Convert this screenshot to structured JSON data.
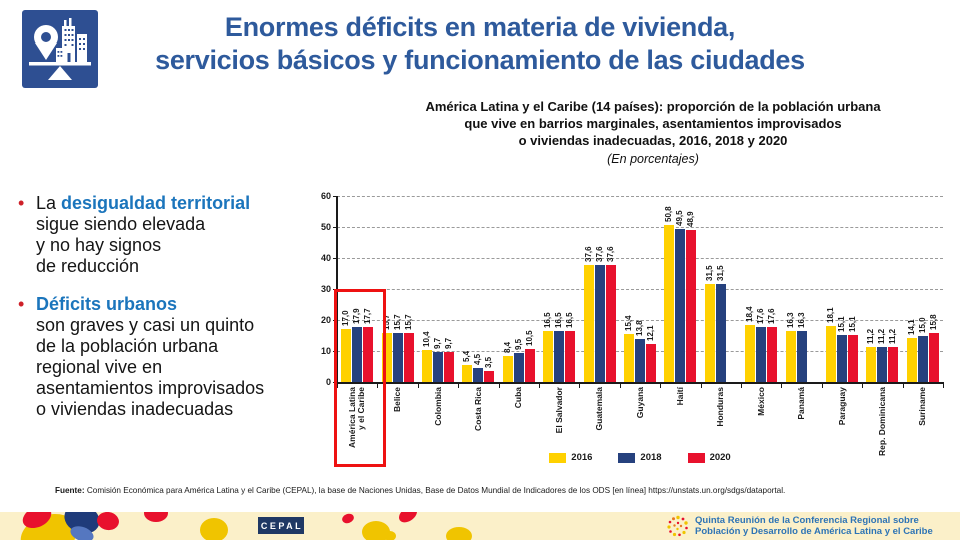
{
  "slide": {
    "title_line1": "Enormes déficits en materia de vivienda,",
    "title_line2": "servicios básicos y funcionamiento de las ciudades"
  },
  "bullets": [
    {
      "prefix": "La ",
      "highlight": "desigualdad territorial",
      "rest": "\nsigue siendo elevada\ny no hay signos\nde reducción"
    },
    {
      "prefix": "",
      "highlight": "Déficits urbanos",
      "rest": "\nson graves y casi un quinto\nde la población urbana\nregional vive en\nasentamientos improvisados\no viviendas inadecuadas"
    }
  ],
  "chart_header": {
    "lines": [
      "América Latina y el Caribe (14 países): proporción de la población urbana",
      "que vive en barrios marginales, asentamientos improvisados",
      "o viviendas inadecuadas, 2016, 2018 y 2020"
    ],
    "subtitle": "(En porcentajes)"
  },
  "chart_data": {
    "type": "bar",
    "title": "América Latina y el Caribe (14 países): proporción de la población urbana que vive en barrios marginales, asentamientos improvisados o viviendas inadecuadas, 2016, 2018 y 2020",
    "subtitle": "(En porcentajes)",
    "categories": [
      "América Latina\ny el Caribe",
      "Belice",
      "Colombia",
      "Costa Rica",
      "Cuba",
      "El Salvador",
      "Guatemala",
      "Guyana",
      "Haití",
      "Honduras",
      "México",
      "Panamá",
      "Paraguay",
      "Rep. Dominicana",
      "Suriname"
    ],
    "series": [
      {
        "name": "2016",
        "color": "#FFD100",
        "values": [
          17.0,
          15.7,
          10.4,
          5.4,
          8.4,
          16.5,
          37.6,
          15.4,
          50.8,
          31.5,
          18.4,
          16.3,
          18.1,
          11.2,
          14.1
        ]
      },
      {
        "name": "2018",
        "color": "#26417E",
        "values": [
          17.9,
          15.7,
          9.7,
          4.5,
          9.5,
          16.5,
          37.6,
          13.8,
          49.5,
          31.5,
          17.6,
          16.3,
          15.1,
          11.2,
          15.0
        ]
      },
      {
        "name": "2020",
        "color": "#E8112D",
        "values": [
          17.7,
          15.7,
          9.7,
          3.5,
          10.5,
          16.5,
          37.6,
          12.1,
          48.9,
          null,
          17.6,
          null,
          15.1,
          11.2,
          15.8
        ]
      }
    ],
    "ylim": [
      0,
      60
    ],
    "ytick_step": 10,
    "grid": "dashed-horizontal",
    "legend_position": "bottom",
    "value_labels": "rotated-90-above-bars",
    "decimal_separator": ",",
    "highlighted_category": "América Latina y el Caribe",
    "highlighted_category_index": 0
  },
  "source": {
    "label": "Fuente:",
    "text": " Comisión Económica para América Latina y el Caribe (CEPAL), la base de Naciones Unidas, Base de Datos Mundial de Indicadores de los ODS [en línea] https://unstats.un.org/sdgs/dataportal."
  },
  "footer": {
    "cepal_logo": "CEPAL",
    "conference_line1": "Quinta Reunión de la Conferencia Regional sobre",
    "conference_line2": "Población y Desarrollo de América Latina y el Caribe"
  },
  "colors": {
    "title_blue": "#2E5A9C",
    "bullet_blue": "#1B75BC",
    "bullet_red": "#CE2029",
    "bar_2016": "#FFD100",
    "bar_2018": "#26417E",
    "bar_2020": "#E8112D",
    "highlight_box_red": "#EE1111",
    "footer_bg": "#FBF0C9",
    "footer_navy": "#1F3864",
    "conference_blue": "#2E74B5",
    "icon_blue": "#2E4F92"
  }
}
